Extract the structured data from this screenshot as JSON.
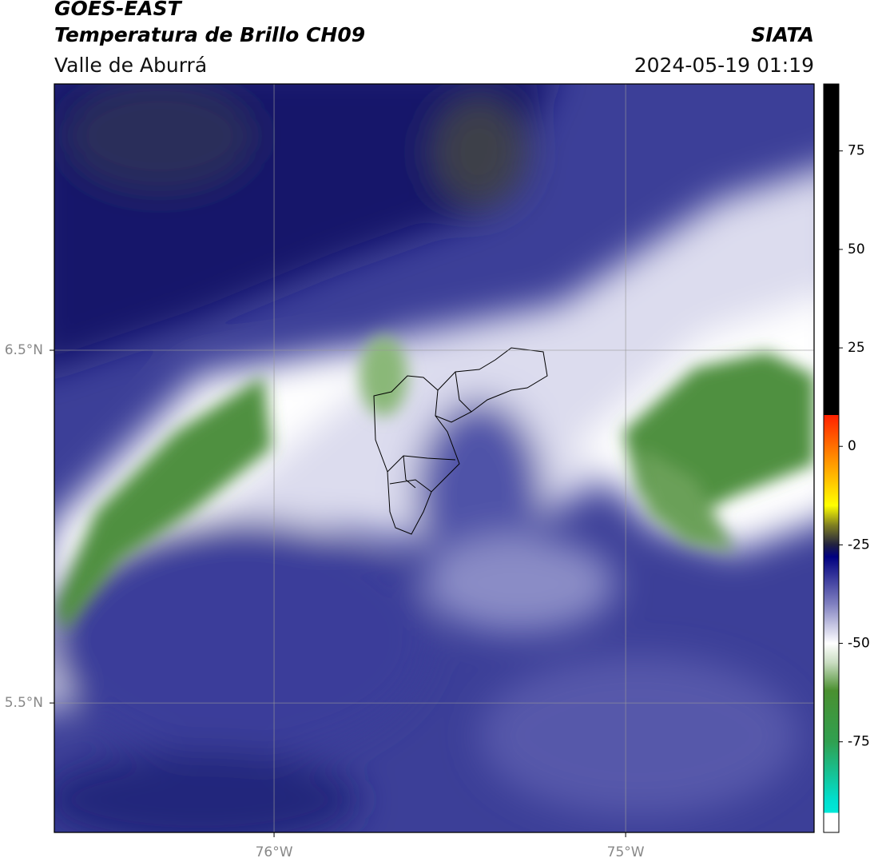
{
  "chart_data": {
    "type": "map",
    "title": "GOES-EAST",
    "subtitle": "Temperatura de Brillo CH09",
    "region": "Valle de Aburrá",
    "source": "SIATA",
    "datetime": "2024-05-19 01:19",
    "xlim": [
      -76.625,
      -74.464
    ],
    "ylim": [
      5.133,
      7.255
    ],
    "xticks": [
      {
        "value": -76,
        "label": "76°W"
      },
      {
        "value": -75,
        "label": "75°W"
      }
    ],
    "yticks": [
      {
        "value": 6.5,
        "label": "6.5°N"
      },
      {
        "value": 5.5,
        "label": "5.5°N"
      }
    ],
    "grid": true,
    "colorbar": {
      "lim": [
        -98,
        92
      ],
      "ticks": [
        75,
        50,
        25,
        0,
        -25,
        -50,
        -75
      ],
      "stops": [
        {
          "value": 92,
          "color": "#000000"
        },
        {
          "value": 8,
          "color": "#000000"
        },
        {
          "value": 8,
          "color": "#ff2000"
        },
        {
          "value": 0,
          "color": "#ff7000"
        },
        {
          "value": -10,
          "color": "#ffd000"
        },
        {
          "value": -15,
          "color": "#ffff00"
        },
        {
          "value": -20,
          "color": "#808020"
        },
        {
          "value": -25,
          "color": "#202040"
        },
        {
          "value": -28,
          "color": "#000080"
        },
        {
          "value": -40,
          "color": "#8080c0"
        },
        {
          "value": -50,
          "color": "#ffffff"
        },
        {
          "value": -55,
          "color": "#c8dcc0"
        },
        {
          "value": -62,
          "color": "#4a9030"
        },
        {
          "value": -75,
          "color": "#30a050"
        },
        {
          "value": -90,
          "color": "#00e0d0"
        },
        {
          "value": -93,
          "color": "#00e8d8"
        },
        {
          "value": -93,
          "color": "#ffffff"
        },
        {
          "value": -98,
          "color": "#ffffff"
        }
      ]
    }
  }
}
